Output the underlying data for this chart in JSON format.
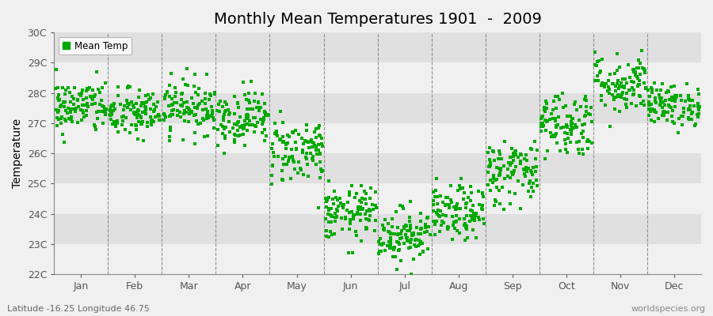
{
  "title": "Monthly Mean Temperatures 1901  -  2009",
  "ylabel": "Temperature",
  "xlabel_bottom_left": "Latitude -16.25 Longitude 46.75",
  "xlabel_bottom_right": "worldspecies.org",
  "ylim": [
    22.0,
    30.0
  ],
  "ytick_labels": [
    "22C",
    "23C",
    "24C",
    "25C",
    "26C",
    "27C",
    "28C",
    "29C",
    "30C"
  ],
  "ytick_values": [
    22,
    23,
    24,
    25,
    26,
    27,
    28,
    29,
    30
  ],
  "months": [
    "Jan",
    "Feb",
    "Mar",
    "Apr",
    "May",
    "Jun",
    "Jul",
    "Aug",
    "Sep",
    "Oct",
    "Nov",
    "Dec"
  ],
  "mean_temps": [
    27.55,
    27.3,
    27.55,
    27.2,
    26.1,
    24.0,
    23.3,
    24.0,
    25.4,
    27.0,
    28.3,
    27.6
  ],
  "std_temps": [
    0.45,
    0.42,
    0.45,
    0.45,
    0.55,
    0.45,
    0.45,
    0.45,
    0.55,
    0.55,
    0.5,
    0.35
  ],
  "n_years": 109,
  "marker_color": "#00aa00",
  "marker": "s",
  "marker_size": 2.5,
  "title_fontsize": 14,
  "legend_label": "Mean Temp",
  "dashed_line_color": "#777777",
  "band_colors": [
    "#f0f0f0",
    "#e0e0e0"
  ],
  "plot_bg": "#ffffff",
  "fig_bg": "#f0f0f0",
  "seed": 42
}
